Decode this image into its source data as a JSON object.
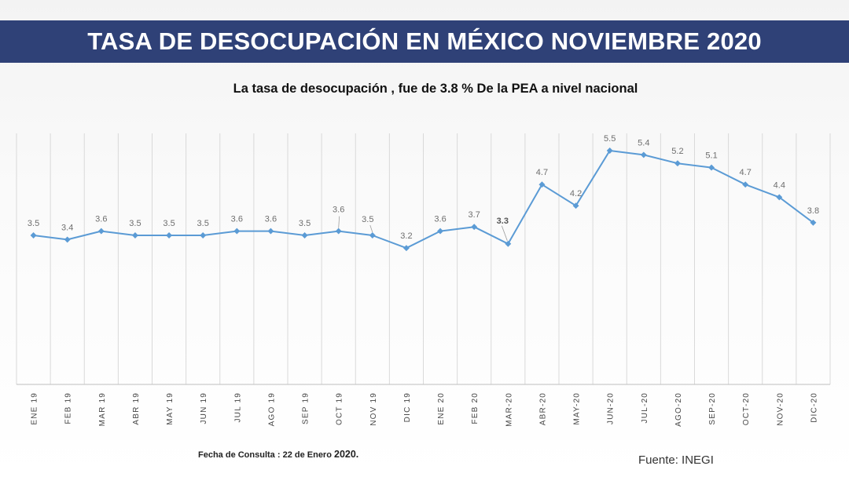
{
  "header": {
    "title": "TASA DE DESOCUPACIÓN EN MÉXICO NOVIEMBRE 2020"
  },
  "footer": {
    "fecha_prefix": "Fecha de Consulta : 22 de Enero ",
    "fecha_year": "2020.",
    "fuente": "Fuente: INEGI"
  },
  "colors": {
    "banner": "#2f4177",
    "line": "#5b9bd5",
    "grid": "#d9d9d9"
  },
  "chart_data": {
    "type": "line",
    "title": "La tasa de desocupación , fue de 3.8 % De la PEA a nivel nacional",
    "xlabel": "",
    "ylabel": "",
    "ylim": [
      0,
      6
    ],
    "grid": "vertical",
    "categories": [
      "ENE 19",
      "FEB 19",
      "MAR 19",
      "ABR 19",
      "MAY 19",
      "JUN 19",
      "JUL 19",
      "AGO 19",
      "SEP 19",
      "OCT 19",
      "NOV 19",
      "DIC 19",
      "ENE 20",
      "FEB 20",
      "MAR-20",
      "ABR-20",
      "MAY-20",
      "JUN-20",
      "JUL-20",
      "AGO-20",
      "SEP-20",
      "OCT-20",
      "NOV-20",
      "DIC-20"
    ],
    "series": [
      {
        "values": [
          3.5,
          3.4,
          3.6,
          3.5,
          3.5,
          3.5,
          3.6,
          3.6,
          3.5,
          3.6,
          3.5,
          3.2,
          3.6,
          3.7,
          3.3,
          4.7,
          4.2,
          5.5,
          5.4,
          5.2,
          5.1,
          4.7,
          4.4,
          3.8
        ]
      }
    ]
  }
}
